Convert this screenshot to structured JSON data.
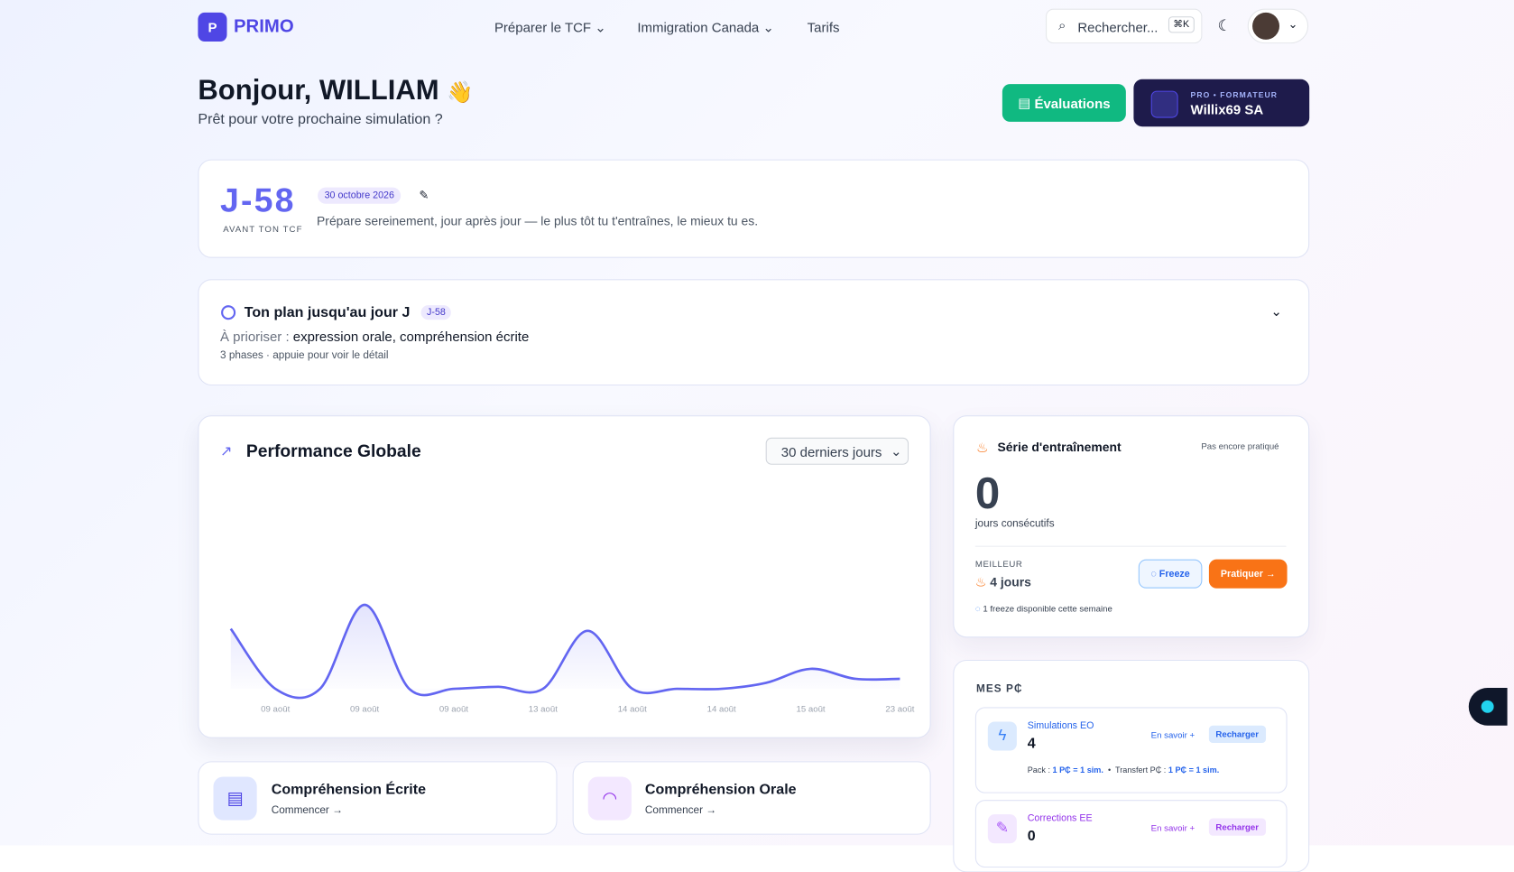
{
  "nav": {
    "logo_letter": "P",
    "brand": "PRIMO",
    "links": [
      "Préparer le TCF",
      "Immigration Canada",
      "Tarifs"
    ],
    "search": "Rechercher...",
    "shortcut": "⌘K"
  },
  "header": {
    "greeting": "Bonjour, WILLIAM",
    "emoji": "👋",
    "subtitle": "Prêt pour votre prochaine simulation ?",
    "evaluations_button": "Évaluations",
    "pro_label": "PRO • FORMATEUR",
    "pro_name": "Willix69 SA"
  },
  "countdown": {
    "days": "J-58",
    "caption": "AVANT TON TCF",
    "date": "30 octobre 2026",
    "message": "Prépare sereinement, jour après jour — le plus tôt tu t'entraînes, le mieux tu es."
  },
  "plan": {
    "title": "Ton plan jusqu'au jour J",
    "badge": "J-58",
    "priority_label": "À prioriser :",
    "priority": "expression orale, compréhension écrite",
    "note": "3 phases · appuie pour voir le détail"
  },
  "period": "30 derniers jours",
  "chart_data": {
    "type": "line",
    "title": "Performance Globale",
    "categories": [
      null,
      "09 août",
      null,
      "09 août",
      null,
      "09 août",
      null,
      "13 août",
      null,
      "14 août",
      null,
      "14 août",
      null,
      "15 août",
      null,
      "23 août"
    ],
    "values": [
      30,
      0,
      0,
      42,
      0,
      0,
      1,
      0,
      29,
      0,
      0,
      0,
      3,
      10,
      5,
      5
    ],
    "color": "#6366f1",
    "ylim": [
      0,
      100
    ]
  },
  "streak": {
    "title": "Série d'entraînement",
    "status": "Pas encore pratiqué",
    "count": 0,
    "count_label": "jours consécutifs",
    "best_label": "MEILLEUR",
    "best": "4 jours",
    "freeze_button": "Freeze",
    "practice_button": "Pratiquer →",
    "freeze_note": "1 freeze disponible cette semaine"
  },
  "credits": {
    "title": "MES P₵",
    "items": [
      {
        "name": "Simulations EO",
        "count": 4,
        "more": "En savoir +",
        "recharge": "Recharger",
        "pack_label": "Pack :",
        "pack_rate": "1 P₵ = 1 sim.",
        "transfer_label": "Transfert P₵ :",
        "transfer_rate": "1 P₵ = 1 sim."
      },
      {
        "name": "Corrections EE",
        "count": 0,
        "more": "En savoir +",
        "recharge": "Recharger"
      }
    ]
  },
  "modules": [
    {
      "title": "Compréhension Écrite",
      "action": "Commencer →"
    },
    {
      "title": "Compréhension Orale",
      "action": "Commencer →"
    }
  ]
}
